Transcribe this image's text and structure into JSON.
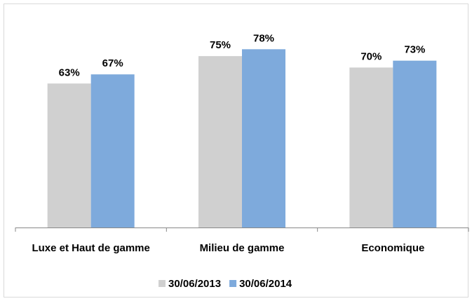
{
  "chart_data": {
    "type": "bar",
    "categories": [
      "Luxe et Haut de gamme",
      "Milieu de gamme",
      "Economique"
    ],
    "series": [
      {
        "name": "30/06/2013",
        "color": "#d0d0d0",
        "values": [
          63,
          75,
          70
        ],
        "value_labels": [
          "63%",
          "75%",
          "70%"
        ]
      },
      {
        "name": "30/06/2014",
        "color": "#7eaadc",
        "values": [
          67,
          78,
          73
        ],
        "value_labels": [
          "67%",
          "78%",
          "73%"
        ]
      }
    ]
  }
}
